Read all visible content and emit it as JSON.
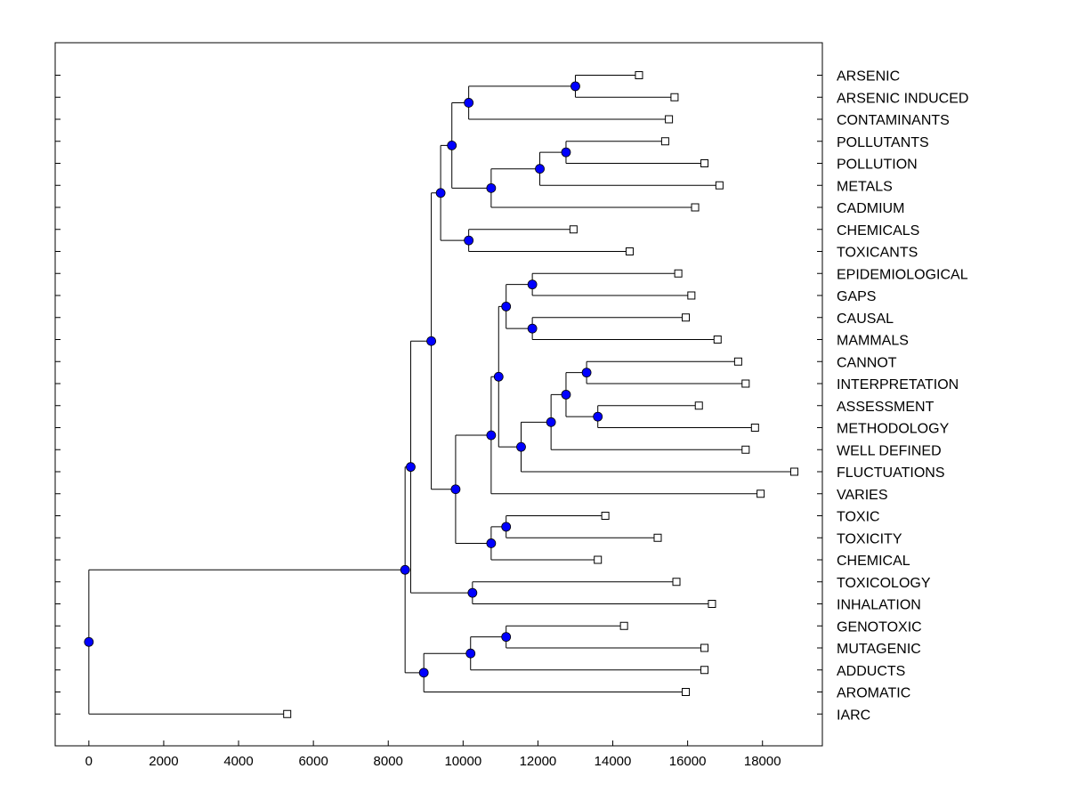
{
  "chart_data": {
    "type": "dendrogram",
    "orientation": "horizontal",
    "xlim": [
      -900,
      19600
    ],
    "x_ticks": [
      0,
      2000,
      4000,
      6000,
      8000,
      10000,
      12000,
      14000,
      16000,
      18000
    ],
    "node_color": "#0000ff",
    "leaves": [
      {
        "label": "ARSENIC",
        "x": 14700
      },
      {
        "label": "ARSENIC INDUCED",
        "x": 15650
      },
      {
        "label": "CONTAMINANTS",
        "x": 15500
      },
      {
        "label": "POLLUTANTS",
        "x": 15400
      },
      {
        "label": "POLLUTION",
        "x": 16450
      },
      {
        "label": "METALS",
        "x": 16850
      },
      {
        "label": "CADMIUM",
        "x": 16200
      },
      {
        "label": "CHEMICALS",
        "x": 12950
      },
      {
        "label": "TOXICANTS",
        "x": 14450
      },
      {
        "label": "EPIDEMIOLOGICAL",
        "x": 15750
      },
      {
        "label": "GAPS",
        "x": 16100
      },
      {
        "label": "CAUSAL",
        "x": 15950
      },
      {
        "label": "MAMMALS",
        "x": 16800
      },
      {
        "label": "CANNOT",
        "x": 17350
      },
      {
        "label": "INTERPRETATION",
        "x": 17550
      },
      {
        "label": "ASSESSMENT",
        "x": 16300
      },
      {
        "label": "METHODOLOGY",
        "x": 17800
      },
      {
        "label": "WELL DEFINED",
        "x": 17550
      },
      {
        "label": "FLUCTUATIONS",
        "x": 18850
      },
      {
        "label": "VARIES",
        "x": 17950
      },
      {
        "label": "TOXIC",
        "x": 13800
      },
      {
        "label": "TOXICITY",
        "x": 15200
      },
      {
        "label": "CHEMICAL",
        "x": 13600
      },
      {
        "label": "TOXICOLOGY",
        "x": 15700
      },
      {
        "label": "INHALATION",
        "x": 16650
      },
      {
        "label": "GENOTOXIC",
        "x": 14300
      },
      {
        "label": "MUTAGENIC",
        "x": 16450
      },
      {
        "label": "ADDUCTS",
        "x": 16450
      },
      {
        "label": "AROMATIC",
        "x": 15950
      },
      {
        "label": "IARC",
        "x": 5300
      }
    ],
    "tree": {
      "x": 0,
      "c": [
        {
          "x": 8450,
          "c": [
            {
              "x": 8600,
              "c": [
                {
                  "x": 9150,
                  "c": [
                    {
                      "x": 9400,
                      "c": [
                        {
                          "x": 9700,
                          "c": [
                            {
                              "x": 10150,
                              "c": [
                                {
                                  "x": 13000,
                                  "c": [
                                    {
                                      "leaf": 0
                                    },
                                    {
                                      "leaf": 1
                                    }
                                  ]
                                },
                                {
                                  "leaf": 2
                                }
                              ]
                            },
                            {
                              "x": 10750,
                              "c": [
                                {
                                  "x": 12050,
                                  "c": [
                                    {
                                      "x": 12750,
                                      "c": [
                                        {
                                          "leaf": 3
                                        },
                                        {
                                          "leaf": 4
                                        }
                                      ]
                                    },
                                    {
                                      "leaf": 5
                                    }
                                  ]
                                },
                                {
                                  "leaf": 6
                                }
                              ]
                            }
                          ]
                        },
                        {
                          "x": 10150,
                          "c": [
                            {
                              "leaf": 7
                            },
                            {
                              "leaf": 8
                            }
                          ]
                        }
                      ]
                    },
                    {
                      "x": 9800,
                      "c": [
                        {
                          "x": 10750,
                          "c": [
                            {
                              "x": 10950,
                              "c": [
                                {
                                  "x": 11150,
                                  "c": [
                                    {
                                      "x": 11850,
                                      "c": [
                                        {
                                          "leaf": 9
                                        },
                                        {
                                          "leaf": 10
                                        }
                                      ]
                                    },
                                    {
                                      "x": 11850,
                                      "c": [
                                        {
                                          "leaf": 11
                                        },
                                        {
                                          "leaf": 12
                                        }
                                      ]
                                    }
                                  ]
                                },
                                {
                                  "x": 11550,
                                  "c": [
                                    {
                                      "x": 12350,
                                      "c": [
                                        {
                                          "x": 12750,
                                          "c": [
                                            {
                                              "x": 13300,
                                              "c": [
                                                {
                                                  "leaf": 13
                                                },
                                                {
                                                  "leaf": 14
                                                }
                                              ]
                                            },
                                            {
                                              "x": 13600,
                                              "c": [
                                                {
                                                  "leaf": 15
                                                },
                                                {
                                                  "leaf": 16
                                                }
                                              ]
                                            }
                                          ]
                                        },
                                        {
                                          "leaf": 17
                                        }
                                      ]
                                    },
                                    {
                                      "leaf": 18
                                    }
                                  ]
                                }
                              ]
                            },
                            {
                              "leaf": 19
                            }
                          ]
                        },
                        {
                          "x": 10750,
                          "c": [
                            {
                              "x": 11150,
                              "c": [
                                {
                                  "leaf": 20
                                },
                                {
                                  "leaf": 21
                                }
                              ]
                            },
                            {
                              "leaf": 22
                            }
                          ]
                        }
                      ]
                    }
                  ]
                },
                {
                  "x": 10250,
                  "c": [
                    {
                      "leaf": 23
                    },
                    {
                      "leaf": 24
                    }
                  ]
                }
              ]
            },
            {
              "x": 8950,
              "c": [
                {
                  "x": 10200,
                  "c": [
                    {
                      "x": 11150,
                      "c": [
                        {
                          "leaf": 25
                        },
                        {
                          "leaf": 26
                        }
                      ]
                    },
                    {
                      "leaf": 27
                    }
                  ]
                },
                {
                  "leaf": 28
                }
              ]
            }
          ]
        },
        {
          "leaf": 29
        }
      ]
    }
  }
}
